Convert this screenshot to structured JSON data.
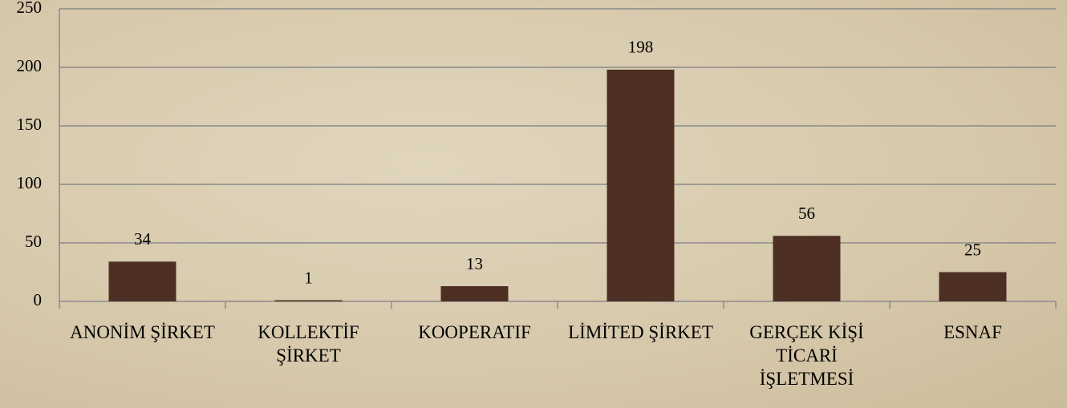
{
  "chart_data": {
    "type": "bar",
    "categories": [
      "ANONİM ŞİRKET",
      "KOLLEKTİF ŞİRKET",
      "KOOPERATIF",
      "LİMİTED ŞİRKET",
      "GERÇEK KİŞİ TİCARİ İŞLETMESİ",
      "ESNAF"
    ],
    "values": [
      34,
      1,
      13,
      198,
      56,
      25
    ],
    "color": "#4e2f24",
    "ylim": [
      0,
      250
    ],
    "yticks": [
      0,
      50,
      100,
      150,
      200,
      250
    ],
    "grid": true
  }
}
